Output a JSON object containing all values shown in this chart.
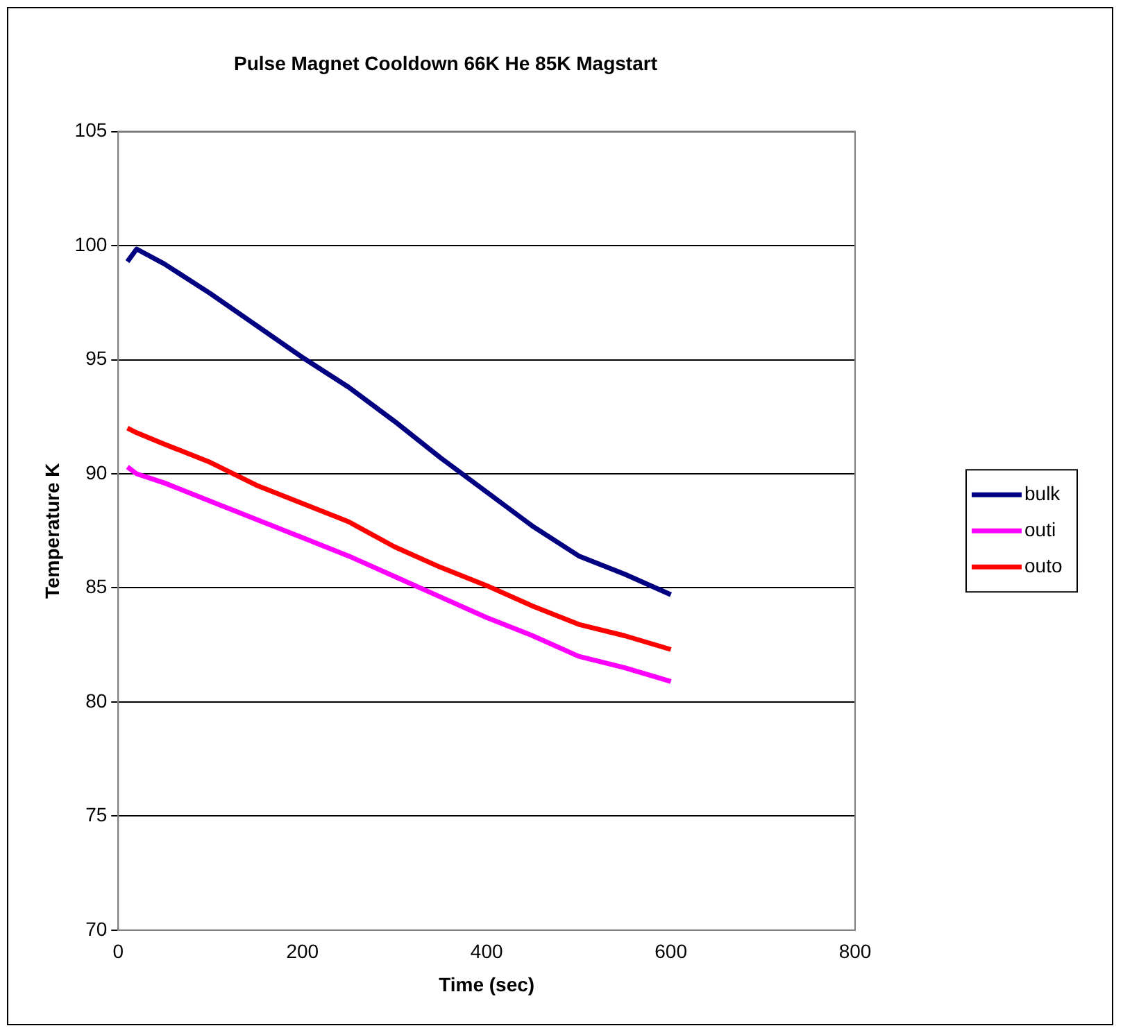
{
  "chart_data": {
    "type": "line",
    "title": "Pulse Magnet Cooldown 66K He 85K Magstart",
    "xlabel": "Time (sec)",
    "ylabel": "Temperature K",
    "x": [
      10,
      20,
      50,
      100,
      150,
      200,
      250,
      300,
      350,
      400,
      450,
      500,
      550,
      600
    ],
    "series": [
      {
        "name": "bulk",
        "color": "#000080",
        "values": [
          99.3,
          99.85,
          99.2,
          97.9,
          96.5,
          95.1,
          93.8,
          92.3,
          90.7,
          89.2,
          87.7,
          86.4,
          85.6,
          84.7
        ]
      },
      {
        "name": "outi",
        "color": "#ff00ff",
        "values": [
          90.3,
          90.0,
          89.6,
          88.8,
          88.0,
          87.2,
          86.4,
          85.5,
          84.6,
          83.7,
          82.9,
          82.0,
          81.5,
          80.9
        ]
      },
      {
        "name": "outo",
        "color": "#ff0000",
        "values": [
          92.0,
          91.8,
          91.3,
          90.5,
          89.5,
          88.7,
          87.9,
          86.8,
          85.9,
          85.1,
          84.2,
          83.4,
          82.9,
          82.3
        ]
      }
    ],
    "xlim": [
      0,
      800
    ],
    "xticks": [
      0,
      200,
      400,
      600,
      800
    ],
    "ylim": [
      70,
      105
    ],
    "yticks": [
      70,
      75,
      80,
      85,
      90,
      95,
      100,
      105
    ],
    "grid": "y",
    "legend": "right",
    "marker": "none",
    "line_style": "solid"
  }
}
